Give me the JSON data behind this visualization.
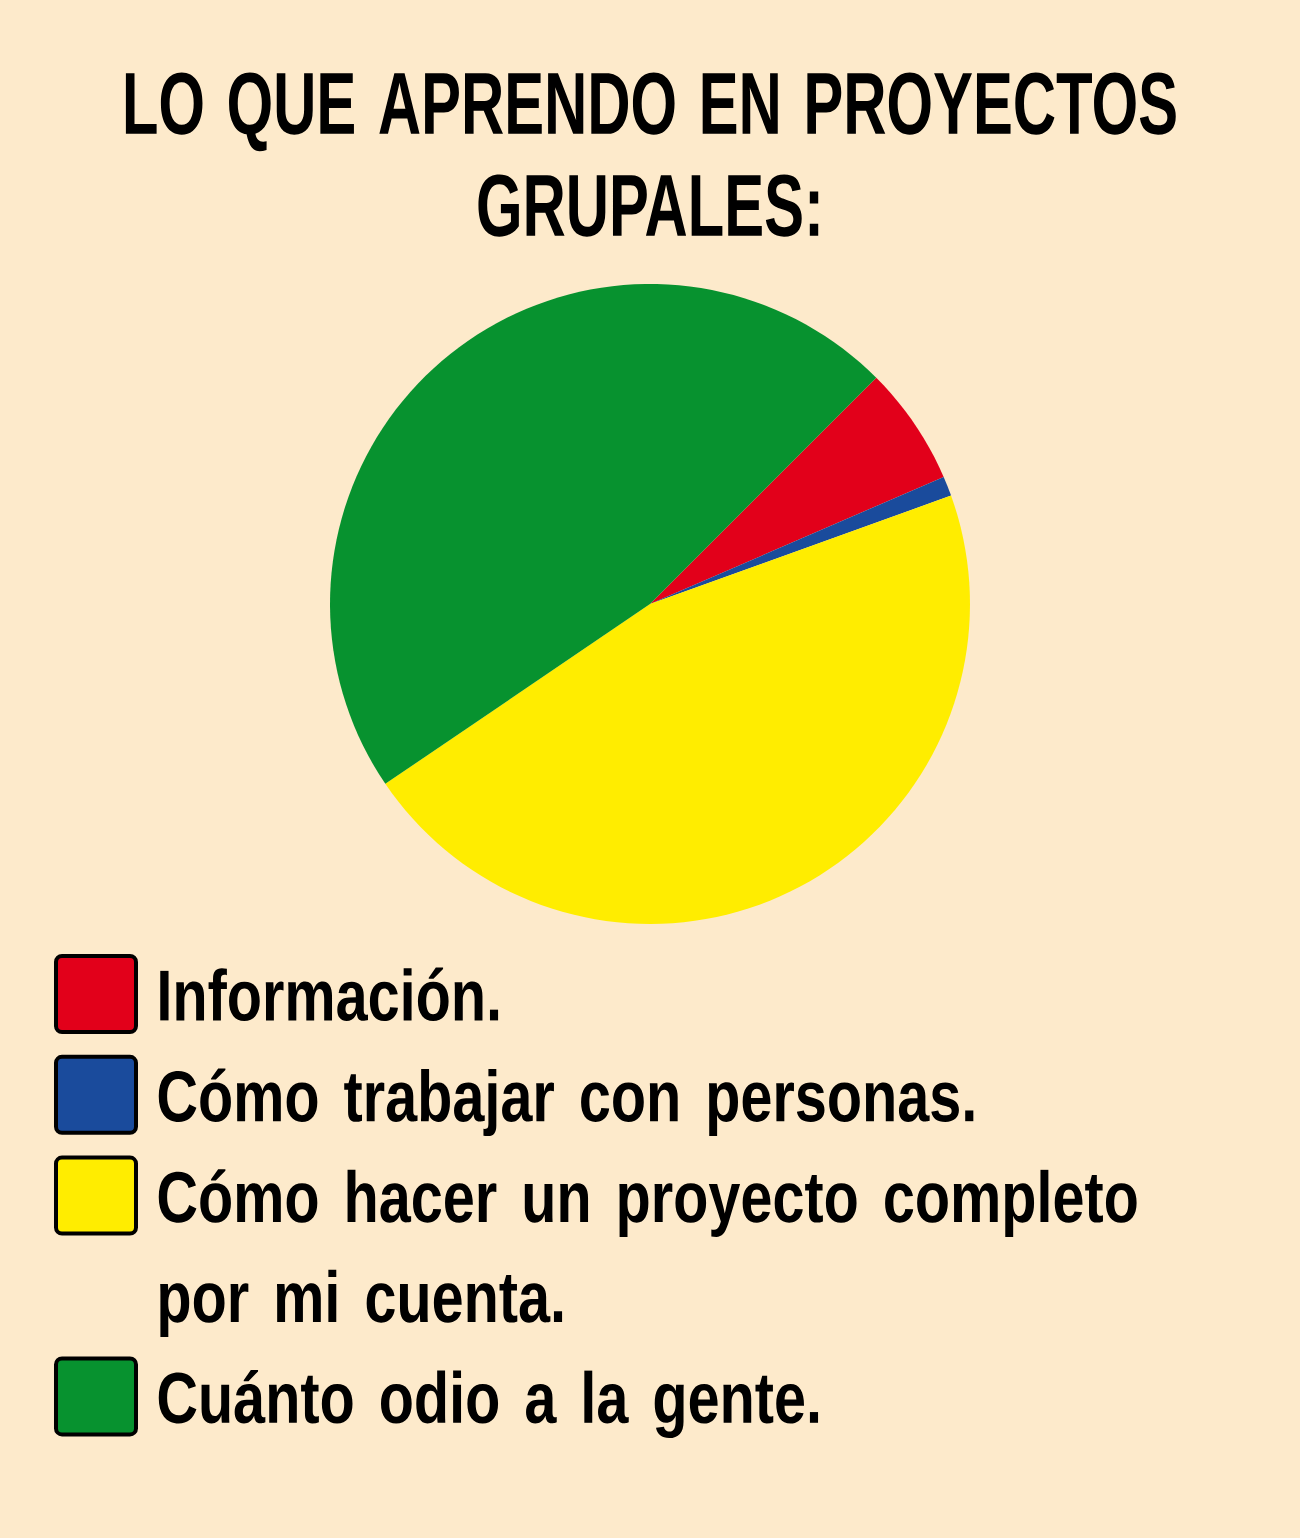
{
  "chart_data": {
    "type": "pie",
    "title": "LO QUE APRENDO EN PROYECTOS GRUPALES:",
    "categories": [
      "Información.",
      "Cómo trabajar con personas.",
      "Cómo hacer un proyecto completo por mi cuenta.",
      "Cuánto odio a la gente."
    ],
    "values": [
      6,
      1,
      46,
      47
    ],
    "colors": [
      "#e2001a",
      "#1a4b9c",
      "#ffed00",
      "#07922f"
    ],
    "legend": "bottom"
  }
}
